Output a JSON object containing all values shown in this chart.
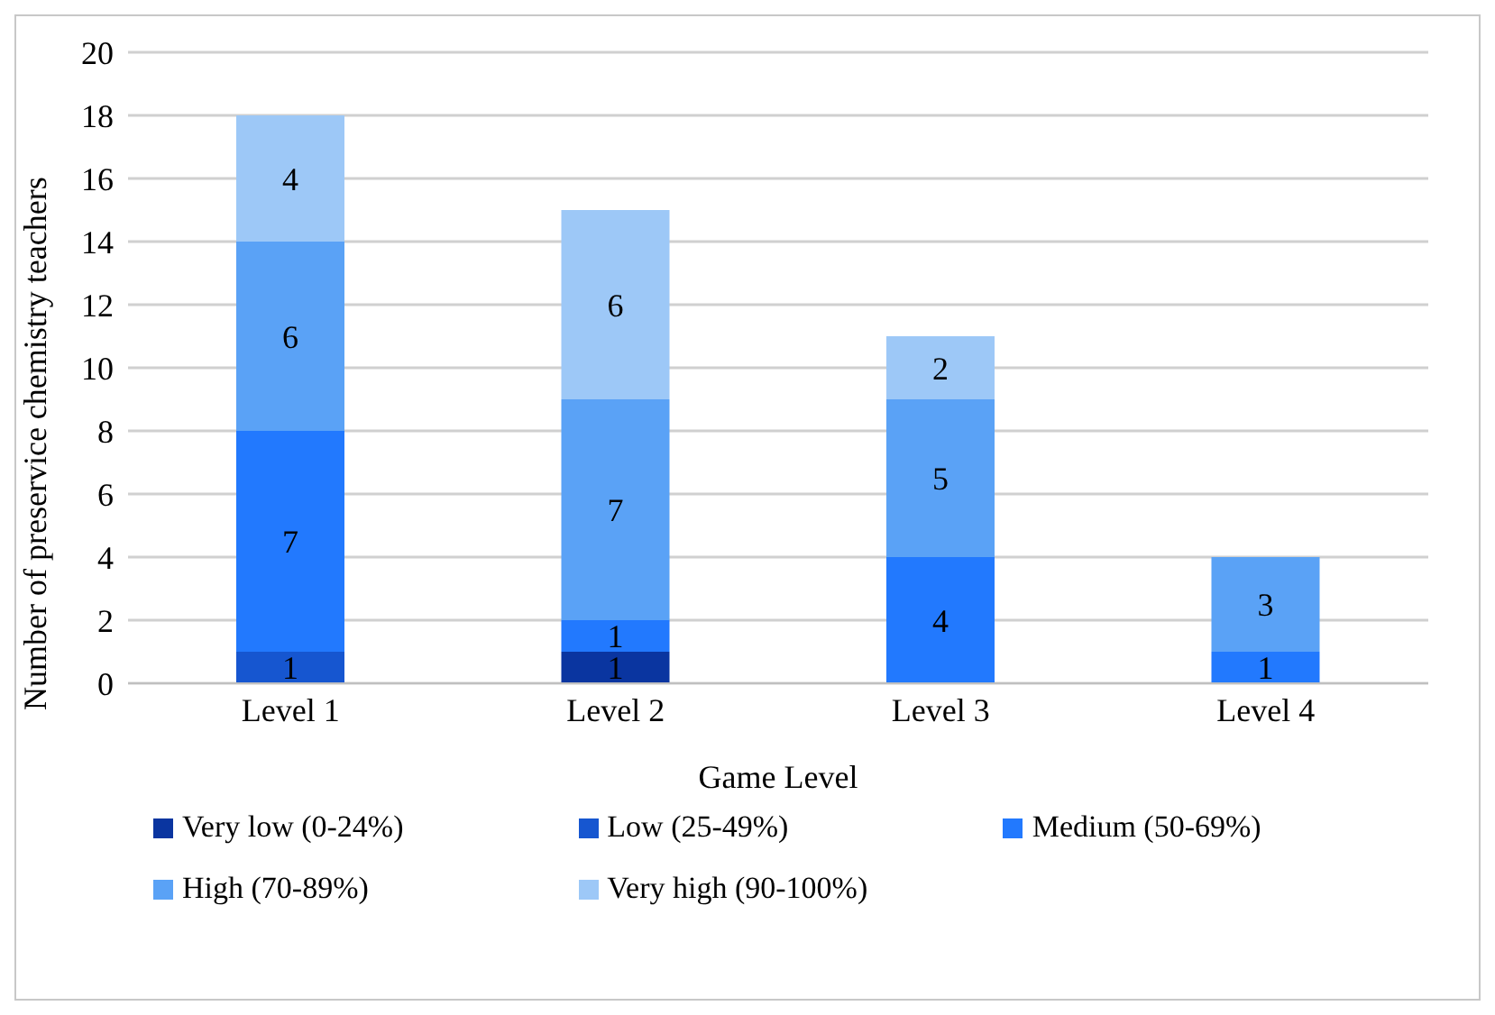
{
  "chart_data": {
    "type": "bar",
    "stacked": true,
    "xlabel": "Game Level",
    "ylabel": "Number of preservice chemistry teachers",
    "categories": [
      "Level 1",
      "Level 2",
      "Level 3",
      "Level 4"
    ],
    "series": [
      {
        "name": "Very low (0-24%)",
        "color": "#0a35a0",
        "values": [
          null,
          1,
          null,
          null
        ]
      },
      {
        "name": "Low (25-49%)",
        "color": "#1656d0",
        "values": [
          1,
          null,
          null,
          null
        ]
      },
      {
        "name": "Medium (50-69%)",
        "color": "#2279fe",
        "values": [
          7,
          1,
          4,
          1
        ]
      },
      {
        "name": "High (70-89%)",
        "color": "#5aa2f6",
        "values": [
          6,
          7,
          5,
          3
        ]
      },
      {
        "name": "Very high (90-100%)",
        "color": "#9dc8f7",
        "values": [
          4,
          6,
          2,
          null
        ]
      }
    ],
    "ylim": [
      0,
      20
    ],
    "yticks": [
      0,
      2,
      4,
      6,
      8,
      10,
      12,
      14,
      16,
      18,
      20
    ],
    "grid": "y",
    "legend": "bottom",
    "data_labels": true
  }
}
